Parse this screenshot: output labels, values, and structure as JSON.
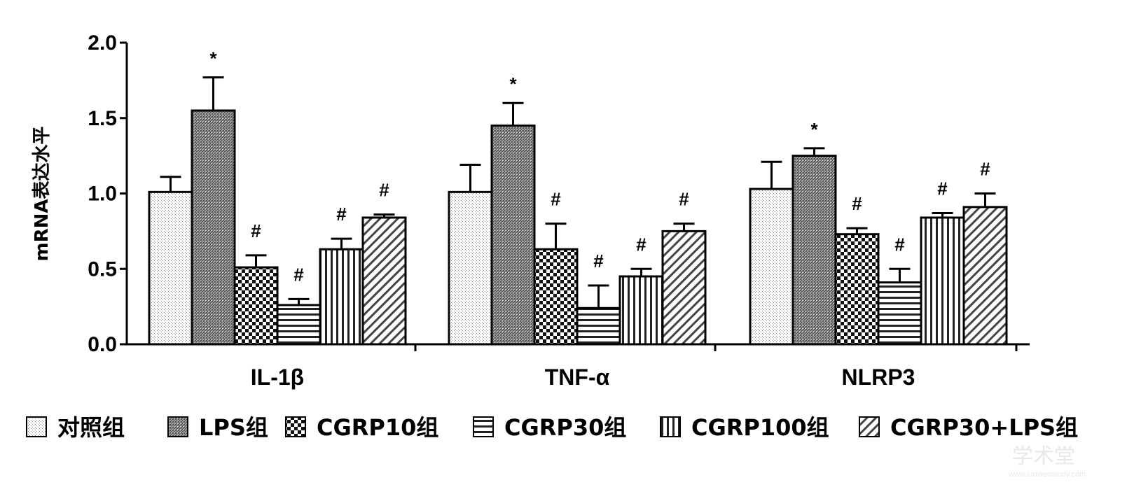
{
  "chart_data": {
    "type": "bar",
    "ylabel": "mRNA表达水平",
    "ylim": [
      0,
      2.0
    ],
    "yticks": [
      "0.0",
      "0.5",
      "1.0",
      "1.5",
      "2.0"
    ],
    "categories": [
      "IL-1β",
      "TNF-α",
      "NLRP3"
    ],
    "grid": false,
    "legend_position": "bottom",
    "series": [
      {
        "name": "对照组",
        "pattern": "dots",
        "values": [
          1.01,
          1.01,
          1.03
        ],
        "errors": [
          0.1,
          0.18,
          0.18
        ],
        "marks": [
          "",
          "",
          ""
        ]
      },
      {
        "name": "LPS组",
        "pattern": "crosshatch",
        "values": [
          1.55,
          1.45,
          1.25
        ],
        "errors": [
          0.22,
          0.15,
          0.05
        ],
        "marks": [
          "*",
          "*",
          "*"
        ]
      },
      {
        "name": "CGRP10组",
        "pattern": "checker",
        "values": [
          0.51,
          0.63,
          0.73
        ],
        "errors": [
          0.08,
          0.17,
          0.04
        ],
        "marks": [
          "#",
          "#",
          "#"
        ]
      },
      {
        "name": "CGRP30组",
        "pattern": "horizontal",
        "values": [
          0.26,
          0.24,
          0.41
        ],
        "errors": [
          0.04,
          0.15,
          0.09
        ],
        "marks": [
          "#",
          "#",
          "#"
        ]
      },
      {
        "name": "CGRP100组",
        "pattern": "vertical",
        "values": [
          0.63,
          0.45,
          0.84
        ],
        "errors": [
          0.07,
          0.05,
          0.03
        ],
        "marks": [
          "#",
          "#",
          "#"
        ]
      },
      {
        "name": "CGRP30+LPS组",
        "pattern": "diagonal",
        "values": [
          0.84,
          0.75,
          0.91
        ],
        "errors": [
          0.02,
          0.05,
          0.09
        ],
        "marks": [
          "#",
          "#",
          "#"
        ]
      }
    ]
  },
  "watermark": {
    "main": "学术堂",
    "sub": "www.lunwenstudy.com"
  }
}
